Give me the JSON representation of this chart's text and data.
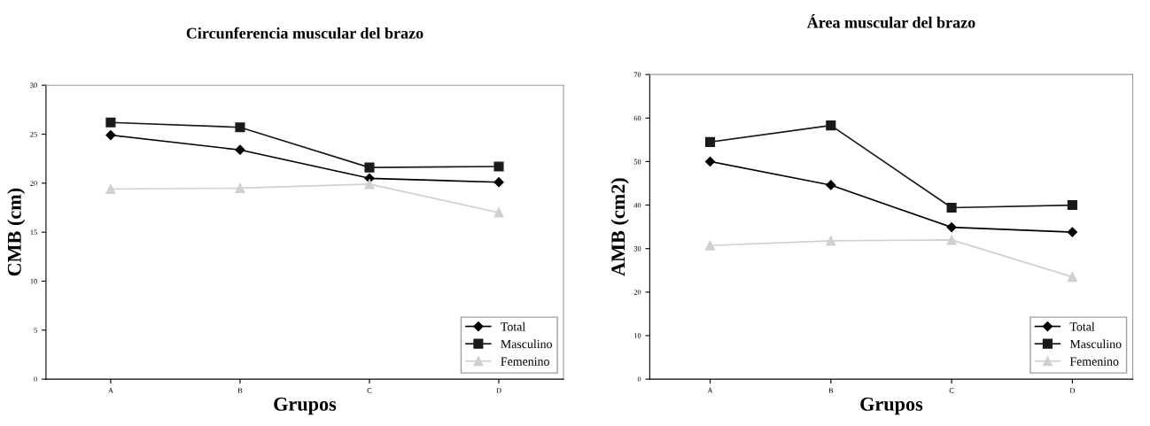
{
  "chart_data": [
    {
      "type": "line",
      "title": "Circunferencia muscular del brazo",
      "xlabel": "Grupos",
      "ylabel": "CMB (cm)",
      "categories": [
        "A",
        "B",
        "C",
        "D"
      ],
      "ylim": [
        0,
        30
      ],
      "yticks": [
        0,
        5,
        10,
        15,
        20,
        25,
        30
      ],
      "grid": false,
      "legend": "bottom right",
      "series": [
        {
          "name": "Total",
          "color": "#000000",
          "marker": "diamond",
          "values": [
            24.9,
            23.4,
            20.5,
            20.1
          ]
        },
        {
          "name": "Masculino",
          "color": "#1a1a1a",
          "marker": "square",
          "values": [
            26.2,
            25.7,
            21.6,
            21.7
          ]
        },
        {
          "name": "Femenino",
          "color": "#d0d0d0",
          "marker": "triangle",
          "values": [
            19.4,
            19.5,
            19.9,
            17.0
          ]
        }
      ]
    },
    {
      "type": "line",
      "title": "Área muscular del brazo",
      "xlabel": "Grupos",
      "ylabel": "AMB (cm2)",
      "categories": [
        "A",
        "B",
        "C",
        "D"
      ],
      "ylim": [
        0,
        70
      ],
      "yticks": [
        0,
        10,
        20,
        30,
        40,
        50,
        60,
        70
      ],
      "grid": false,
      "legend": "bottom right",
      "series": [
        {
          "name": "Total",
          "color": "#000000",
          "marker": "diamond",
          "values": [
            50.0,
            44.6,
            34.9,
            33.8
          ]
        },
        {
          "name": "Masculino",
          "color": "#1a1a1a",
          "marker": "square",
          "values": [
            54.5,
            58.3,
            39.4,
            40.0
          ]
        },
        {
          "name": "Femenino",
          "color": "#d0d0d0",
          "marker": "triangle",
          "values": [
            30.7,
            31.8,
            32.0,
            23.5
          ]
        }
      ]
    }
  ]
}
